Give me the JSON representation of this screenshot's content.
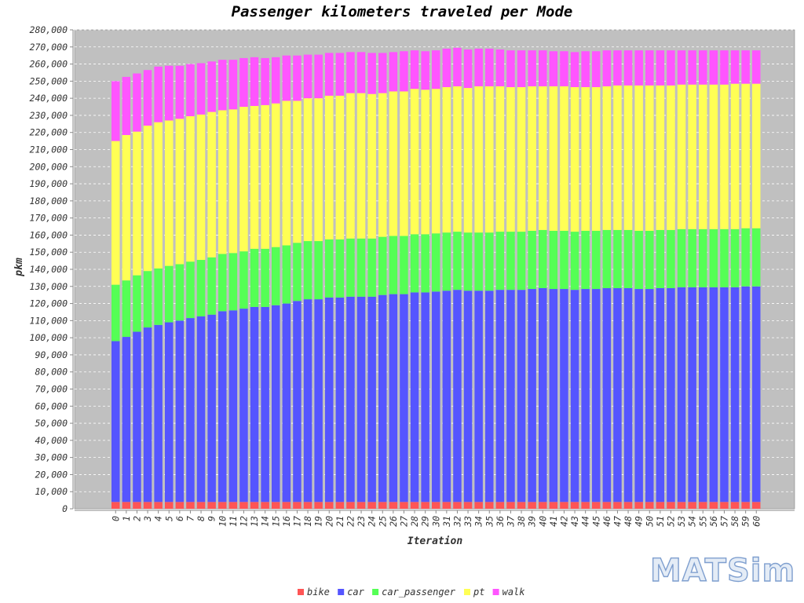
{
  "chart_data": {
    "type": "bar",
    "stacked": true,
    "title": "Passenger kilometers traveled per Mode",
    "xlabel": "Iteration",
    "ylabel": "pkm",
    "ylim": [
      0,
      280000
    ],
    "ytick_step": 10000,
    "grid": true,
    "legend_position": "bottom",
    "background": "#c0c0c0",
    "categories": [
      "0",
      "1",
      "2",
      "3",
      "4",
      "5",
      "6",
      "7",
      "8",
      "9",
      "10",
      "11",
      "12",
      "13",
      "14",
      "15",
      "16",
      "17",
      "18",
      "19",
      "20",
      "21",
      "22",
      "23",
      "24",
      "25",
      "26",
      "27",
      "28",
      "29",
      "30",
      "31",
      "32",
      "33",
      "34",
      "35",
      "36",
      "37",
      "38",
      "39",
      "40",
      "41",
      "42",
      "43",
      "44",
      "45",
      "46",
      "47",
      "48",
      "49",
      "50",
      "51",
      "52",
      "53",
      "54",
      "55",
      "56",
      "57",
      "58",
      "59",
      "60"
    ],
    "series": [
      {
        "name": "bike",
        "color": "#ff5555",
        "values": [
          4000,
          4000,
          4000,
          4000,
          4000,
          4000,
          4000,
          4000,
          4000,
          4000,
          4000,
          4000,
          4000,
          4000,
          4000,
          4000,
          4000,
          4000,
          4000,
          4000,
          4000,
          4000,
          4000,
          4000,
          4000,
          4000,
          4000,
          4000,
          4000,
          4000,
          4000,
          4000,
          4000,
          4000,
          4000,
          4000,
          4000,
          4000,
          4000,
          4000,
          4000,
          4000,
          4000,
          4000,
          4000,
          4000,
          4000,
          4000,
          4000,
          4000,
          4000,
          4000,
          4000,
          4000,
          4000,
          4000,
          4000,
          4000,
          4000,
          4000,
          4000
        ]
      },
      {
        "name": "car",
        "color": "#5555ff",
        "values": [
          94000,
          96500,
          99500,
          102000,
          103500,
          105000,
          106000,
          107500,
          108500,
          109500,
          111500,
          112000,
          113000,
          114000,
          114000,
          115000,
          116000,
          117500,
          118500,
          118500,
          119500,
          119500,
          120000,
          120000,
          120000,
          121000,
          121500,
          121500,
          122500,
          122500,
          123000,
          123500,
          124000,
          123500,
          123500,
          123500,
          124000,
          124000,
          124000,
          124500,
          125000,
          124500,
          124500,
          124000,
          124500,
          124500,
          125000,
          125000,
          125000,
          124500,
          124500,
          125000,
          125000,
          125500,
          125500,
          125500,
          125500,
          125500,
          125500,
          126000,
          126000
        ]
      },
      {
        "name": "car_passenger",
        "color": "#55ff55",
        "values": [
          33000,
          33000,
          33000,
          33000,
          33000,
          33000,
          33000,
          33000,
          33000,
          33500,
          33500,
          33500,
          33500,
          34000,
          34000,
          34000,
          34000,
          34000,
          34000,
          34000,
          34000,
          34000,
          34000,
          34000,
          34000,
          34000,
          34000,
          34000,
          34000,
          34000,
          34000,
          34000,
          34000,
          34000,
          34000,
          34000,
          34000,
          34000,
          34000,
          34000,
          34000,
          34000,
          34000,
          34000,
          34000,
          34000,
          34000,
          34000,
          34000,
          34000,
          34000,
          34000,
          34000,
          34000,
          34000,
          34000,
          34000,
          34000,
          34000,
          34000,
          34000
        ]
      },
      {
        "name": "pt",
        "color": "#ffff55",
        "values": [
          84000,
          85000,
          84000,
          85000,
          85500,
          85000,
          85000,
          85000,
          85000,
          85000,
          84000,
          84000,
          84500,
          83500,
          84000,
          84000,
          84500,
          83000,
          83500,
          83500,
          84000,
          84000,
          85000,
          85000,
          84500,
          84000,
          84500,
          84500,
          85000,
          84500,
          84500,
          85000,
          85000,
          84500,
          85500,
          85500,
          85000,
          84500,
          84500,
          84500,
          84000,
          84500,
          84500,
          84500,
          84000,
          84000,
          84000,
          84500,
          84500,
          85000,
          85000,
          84500,
          84500,
          84500,
          84500,
          84500,
          84500,
          84500,
          85000,
          84500,
          84500
        ]
      },
      {
        "name": "walk",
        "color": "#ff55ff",
        "values": [
          35000,
          34000,
          34000,
          32500,
          32500,
          32000,
          31000,
          30500,
          30000,
          29500,
          29500,
          29000,
          28500,
          28500,
          27500,
          27000,
          26500,
          26500,
          25500,
          25500,
          25000,
          25000,
          24000,
          24000,
          24000,
          23500,
          23000,
          23500,
          22500,
          22500,
          22500,
          22500,
          22500,
          22500,
          22000,
          22000,
          21500,
          21500,
          21500,
          21000,
          21000,
          20500,
          20500,
          20500,
          21000,
          21000,
          21000,
          20500,
          20500,
          20500,
          20500,
          20500,
          20500,
          20000,
          20000,
          20000,
          20000,
          20000,
          19500,
          19500,
          19500
        ]
      }
    ]
  },
  "branding": {
    "logo": "MATSim"
  }
}
